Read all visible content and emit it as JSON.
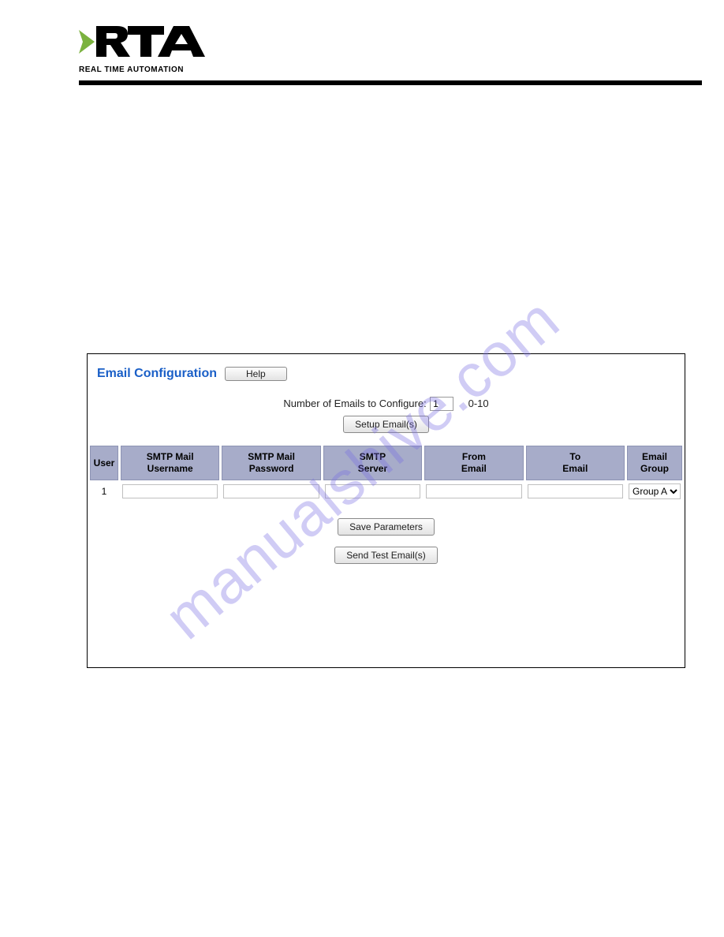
{
  "branding": {
    "subtitle": "REAL TIME AUTOMATION",
    "logo_colors": {
      "arrow": "#7bb23f",
      "text": "#000000"
    }
  },
  "watermark": "manualshive.com",
  "panel": {
    "title": "Email Configuration",
    "help_btn_label": "Help",
    "num_emails_label": "Number of Emails to Configure:",
    "num_emails_value": "1",
    "num_emails_range": "0-10",
    "setup_btn_label": "Setup Email(s)",
    "save_btn_label": "Save Parameters",
    "test_btn_label": "Send Test Email(s)",
    "columns": {
      "user": "User",
      "smtp_user": "SMTP Mail\nUsername",
      "smtp_pass": "SMTP Mail\nPassword",
      "smtp_server": "SMTP\nServer",
      "from_email": "From\nEmail",
      "to_email": "To\nEmail",
      "email_group": "Email\nGroup"
    },
    "rows": [
      {
        "user": "1",
        "smtp_user": "",
        "smtp_pass": "",
        "smtp_server": "",
        "from_email": "",
        "to_email": "",
        "email_group": "Group A"
      }
    ],
    "group_options": [
      "Group A"
    ]
  },
  "styling": {
    "header_bg": "#a7acc9",
    "header_border": "#8d93b3",
    "title_color": "#1a5fc7",
    "divider_color": "#000000",
    "body_bg": "#ffffff"
  }
}
